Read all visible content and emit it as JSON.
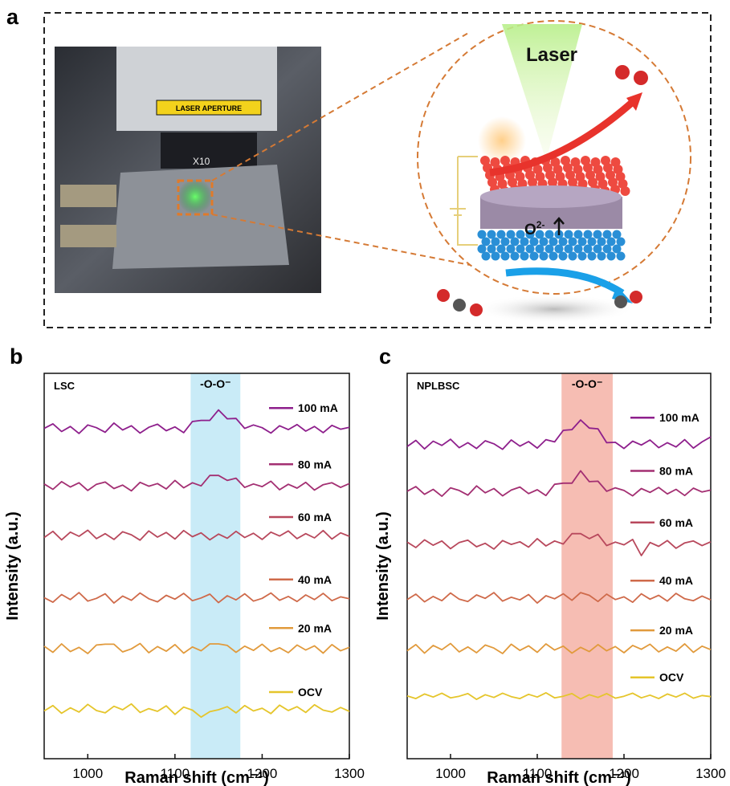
{
  "panel_labels": [
    "a",
    "b",
    "c"
  ],
  "photo": {
    "aperture_label": "LASER APERTURE",
    "objective_label": "X10"
  },
  "schematic": {
    "laser_label": "Laser",
    "ion_label": "O",
    "ion_charge": "2-"
  },
  "chart_data": [
    {
      "type": "line",
      "corner_label": "LSC",
      "x_label": "Raman shift (cm⁻¹)",
      "y_label": "Intensity (a.u.)",
      "xlim": [
        950,
        1300
      ],
      "ylim": [
        0,
        100
      ],
      "xticks": [
        1000,
        1100,
        1200,
        1300
      ],
      "band": {
        "label": "-O-O⁻",
        "range": [
          1118,
          1175
        ],
        "color": "#bfe7f6"
      },
      "x": [
        950,
        960,
        970,
        980,
        990,
        1000,
        1010,
        1020,
        1030,
        1040,
        1050,
        1060,
        1070,
        1080,
        1090,
        1100,
        1110,
        1120,
        1130,
        1140,
        1150,
        1160,
        1170,
        1180,
        1190,
        1200,
        1210,
        1220,
        1230,
        1240,
        1250,
        1260,
        1270,
        1280,
        1290,
        1300
      ],
      "series": [
        {
          "name": "100 mA",
          "color": "#8e1f8c",
          "values": [
            85.7,
            86.9,
            84.9,
            86.2,
            84.4,
            86.6,
            85.9,
            84.7,
            87.1,
            85.3,
            86.4,
            84.5,
            86.0,
            86.8,
            85.1,
            86.1,
            84.6,
            87.5,
            87.8,
            87.8,
            90.5,
            88.2,
            88.3,
            85.7,
            86.6,
            85.9,
            84.5,
            86.4,
            85.4,
            86.7,
            85.0,
            86.2,
            84.6,
            86.5,
            85.5,
            86.0
          ]
        },
        {
          "name": "80 mA",
          "color": "#a32f72",
          "values": [
            71.3,
            69.9,
            71.9,
            70.5,
            71.6,
            69.6,
            71.2,
            71.8,
            70.1,
            71.0,
            69.5,
            71.7,
            70.7,
            71.4,
            70.0,
            72.2,
            70.3,
            71.6,
            70.8,
            73.5,
            73.5,
            72.2,
            72.8,
            70.4,
            71.3,
            70.6,
            72.0,
            69.8,
            71.2,
            70.2,
            71.7,
            69.7,
            71.1,
            71.6,
            70.4,
            71.4
          ]
        },
        {
          "name": "60 mA",
          "color": "#b8485c",
          "values": [
            57.4,
            59.0,
            56.8,
            58.8,
            57.7,
            59.3,
            57.1,
            58.4,
            56.9,
            58.9,
            58.1,
            56.7,
            59.1,
            57.5,
            58.7,
            57.0,
            59.2,
            57.6,
            58.6,
            56.8,
            58.3,
            57.2,
            59.0,
            57.4,
            58.5,
            56.9,
            58.8,
            57.8,
            59.1,
            57.1,
            58.4,
            57.3,
            59.2,
            57.0,
            58.6,
            57.7
          ]
        },
        {
          "name": "40 mA",
          "color": "#cf6a4a",
          "values": [
            41.8,
            40.6,
            42.6,
            41.3,
            43.1,
            40.9,
            41.6,
            42.8,
            40.4,
            42.2,
            41.1,
            43.0,
            41.5,
            40.7,
            42.4,
            41.4,
            42.9,
            41.0,
            41.7,
            42.7,
            40.5,
            42.3,
            41.2,
            42.8,
            40.9,
            41.6,
            43.0,
            41.1,
            42.1,
            40.8,
            42.5,
            41.3,
            42.9,
            41.0,
            42.0,
            41.5
          ]
        },
        {
          "name": "20 mA",
          "color": "#e19a3c",
          "values": [
            29.2,
            27.6,
            29.8,
            27.8,
            28.9,
            27.3,
            29.5,
            29.7,
            29.7,
            27.7,
            28.5,
            29.9,
            27.5,
            29.1,
            27.9,
            29.6,
            27.4,
            29.0,
            28.0,
            29.8,
            29.8,
            29.4,
            27.6,
            29.2,
            28.1,
            29.7,
            27.8,
            28.8,
            27.5,
            29.5,
            28.2,
            29.3,
            27.4,
            29.6,
            28.0,
            28.9
          ]
        },
        {
          "name": "OCV",
          "color": "#e5c52b",
          "values": [
            12.4,
            13.8,
            11.8,
            13.2,
            12.1,
            14.1,
            12.5,
            11.9,
            13.6,
            12.7,
            14.2,
            12.0,
            13.0,
            12.3,
            13.7,
            11.5,
            13.4,
            12.6,
            10.8,
            12.2,
            12.7,
            13.5,
            11.9,
            13.8,
            12.4,
            13.1,
            11.7,
            13.9,
            12.5,
            13.5,
            12.0,
            14.0,
            12.6,
            12.1,
            13.3,
            12.3
          ]
        }
      ]
    },
    {
      "type": "line",
      "corner_label": "NPLBSC",
      "x_label": "Raman shift (cm⁻¹)",
      "y_label": "Intensity (a.u.)",
      "xlim": [
        950,
        1300
      ],
      "ylim": [
        0,
        100
      ],
      "xticks": [
        1000,
        1100,
        1200,
        1300
      ],
      "band": {
        "label": "-O-O⁻",
        "range": [
          1128,
          1187
        ],
        "color": "#f4b2a6"
      },
      "x": [
        950,
        960,
        970,
        980,
        990,
        1000,
        1010,
        1020,
        1030,
        1040,
        1050,
        1060,
        1070,
        1080,
        1090,
        1100,
        1110,
        1120,
        1130,
        1140,
        1150,
        1160,
        1170,
        1180,
        1190,
        1200,
        1210,
        1220,
        1230,
        1240,
        1250,
        1260,
        1270,
        1280,
        1290,
        1300
      ],
      "series": [
        {
          "name": "100 mA",
          "color": "#8e1f8c",
          "values": [
            81.0,
            82.6,
            80.4,
            82.4,
            81.3,
            82.9,
            80.7,
            82.0,
            80.5,
            82.5,
            81.7,
            80.3,
            82.7,
            81.1,
            82.3,
            80.6,
            82.8,
            82.2,
            85.2,
            85.4,
            87.9,
            85.8,
            85.6,
            82.0,
            82.1,
            80.5,
            82.4,
            81.4,
            82.7,
            80.7,
            82.0,
            80.9,
            82.8,
            80.6,
            82.2,
            83.5
          ]
        },
        {
          "name": "80 mA",
          "color": "#a32f72",
          "values": [
            69.4,
            70.6,
            68.6,
            69.9,
            68.1,
            70.3,
            69.6,
            68.4,
            70.8,
            69.0,
            70.1,
            68.2,
            69.7,
            70.5,
            68.8,
            69.8,
            68.3,
            71.2,
            71.5,
            71.5,
            74.7,
            71.9,
            72.0,
            69.4,
            70.3,
            69.6,
            68.2,
            70.1,
            69.1,
            70.4,
            68.7,
            69.9,
            68.3,
            70.2,
            69.2,
            69.7
          ]
        },
        {
          "name": "60 mA",
          "color": "#b8485c",
          "values": [
            56.2,
            54.8,
            56.8,
            55.4,
            56.5,
            54.5,
            56.1,
            56.7,
            55.0,
            55.9,
            54.4,
            56.6,
            55.6,
            56.3,
            54.9,
            57.1,
            55.2,
            56.5,
            55.7,
            58.4,
            58.4,
            57.1,
            58.2,
            55.3,
            56.2,
            55.5,
            56.9,
            52.7,
            56.1,
            55.1,
            56.6,
            54.6,
            56.0,
            56.5,
            55.3,
            56.3
          ]
        },
        {
          "name": "40 mA",
          "color": "#cf6a4a",
          "values": [
            41.3,
            42.7,
            40.7,
            42.1,
            41.0,
            43.0,
            41.4,
            40.8,
            42.5,
            41.6,
            43.1,
            40.9,
            41.9,
            41.2,
            42.6,
            40.4,
            42.3,
            41.5,
            42.8,
            41.1,
            43.1,
            42.4,
            40.8,
            42.7,
            41.3,
            42.0,
            40.6,
            42.8,
            41.4,
            42.4,
            40.9,
            42.9,
            41.5,
            41.0,
            42.2,
            41.2
          ]
        },
        {
          "name": "20 mA",
          "color": "#e19a3c",
          "values": [
            28.0,
            29.6,
            27.4,
            29.4,
            28.3,
            29.9,
            27.7,
            29.0,
            27.5,
            29.5,
            28.7,
            27.3,
            29.7,
            28.1,
            29.3,
            27.6,
            29.8,
            28.2,
            29.2,
            27.4,
            28.9,
            27.8,
            29.6,
            28.0,
            29.1,
            27.5,
            29.4,
            28.4,
            29.7,
            27.7,
            29.0,
            27.9,
            29.8,
            27.6,
            29.2,
            28.3
          ]
        },
        {
          "name": "OCV",
          "color": "#e5c52b",
          "values": [
            16.3,
            15.6,
            16.8,
            16.0,
            17.0,
            15.8,
            16.2,
            16.9,
            15.4,
            16.6,
            15.9,
            17.0,
            16.1,
            15.6,
            16.7,
            16.0,
            17.1,
            15.8,
            16.2,
            16.9,
            15.5,
            16.6,
            15.9,
            16.9,
            15.7,
            16.2,
            17.0,
            15.8,
            16.5,
            15.6,
            16.8,
            16.0,
            17.0,
            15.7,
            16.4,
            16.1
          ]
        }
      ]
    }
  ]
}
